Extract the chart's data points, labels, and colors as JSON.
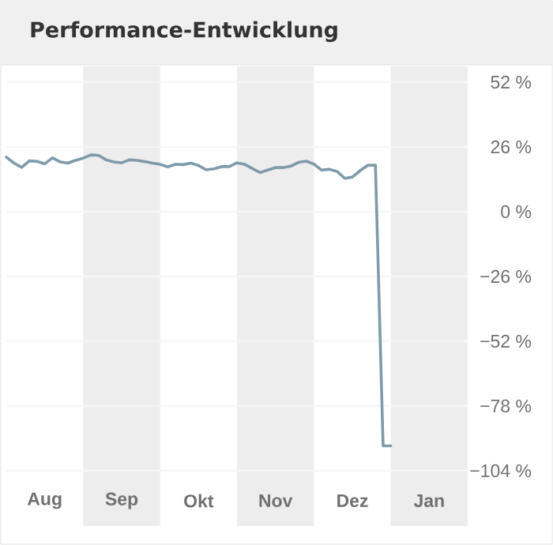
{
  "chart_data": {
    "type": "line",
    "title": "Performance-Entwicklung",
    "categories": [
      null,
      null,
      null,
      null,
      null,
      "Aug",
      null,
      null,
      null,
      null,
      null,
      null,
      null,
      null,
      null,
      "Sep",
      null,
      null,
      null,
      null,
      null,
      null,
      null,
      null,
      null,
      "Okt",
      null,
      null,
      null,
      null,
      null,
      null,
      null,
      null,
      null,
      "Nov",
      null,
      null,
      null,
      null,
      null,
      null,
      null,
      null,
      null,
      "Dez",
      null,
      null,
      null,
      null,
      null,
      null,
      null,
      null,
      null,
      "Jan",
      null,
      null,
      null,
      null,
      null
    ],
    "series": [
      {
        "color": "#7f9aab",
        "values": [
          21.9,
          19.5,
          17.8,
          20.4,
          20.2,
          19.2,
          21.6,
          20.0,
          19.5,
          20.6,
          21.5,
          22.8,
          22.6,
          20.8,
          20.0,
          19.6,
          20.8,
          20.6,
          20.1,
          19.5,
          19.0,
          18.0,
          19.0,
          18.9,
          19.5,
          18.5,
          16.8,
          17.2,
          18.1,
          18.1,
          19.6,
          19.0,
          17.3,
          15.7,
          16.7,
          17.7,
          17.7,
          18.3,
          19.8,
          20.3,
          19.1,
          16.7,
          17.0,
          16.2,
          13.4,
          13.9,
          16.4,
          18.6,
          18.7,
          -94,
          -94,
          null,
          null,
          null,
          null,
          null,
          null,
          null,
          null,
          null,
          null
        ]
      }
    ],
    "ylim": [
      -104,
      52
    ],
    "yticks": [
      {
        "value": 52,
        "label": "52 %"
      },
      {
        "value": 26,
        "label": "26 %"
      },
      {
        "value": 0,
        "label": "0 %"
      },
      {
        "value": -26,
        "label": "−26 %"
      },
      {
        "value": -52,
        "label": "−52 %"
      },
      {
        "value": -78,
        "label": "−78 %"
      },
      {
        "value": -104,
        "label": "−104 %"
      }
    ],
    "grid": "y",
    "marker": "none",
    "line_style": "solid"
  }
}
